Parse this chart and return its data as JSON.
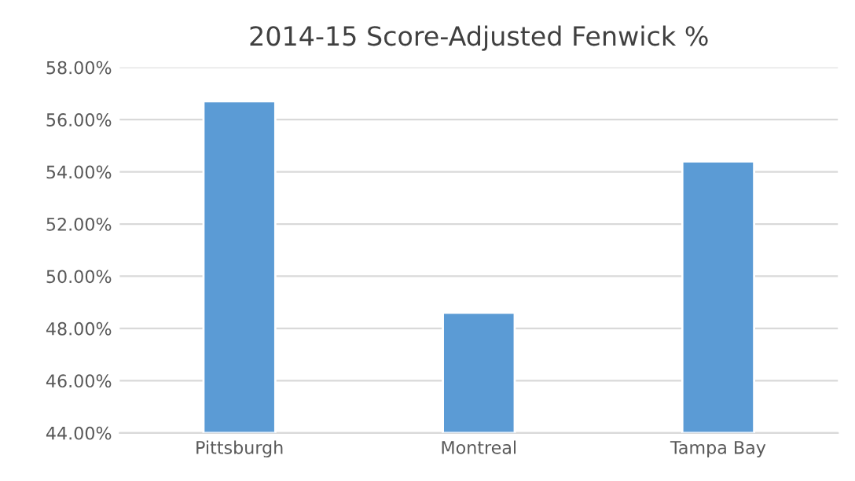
{
  "chart_data": {
    "type": "bar",
    "title": "2014-15 Score-Adjusted Fenwick %",
    "categories": [
      "Pittsburgh",
      "Montreal",
      "Tampa Bay"
    ],
    "values": [
      56.7,
      48.6,
      54.4
    ],
    "color": "#5b9bd5",
    "ylim": [
      44,
      58
    ],
    "yticks": [
      {
        "value": 44,
        "label": "44.00%"
      },
      {
        "value": 46,
        "label": "46.00%"
      },
      {
        "value": 48,
        "label": "48.00%"
      },
      {
        "value": 50,
        "label": "50.00%"
      },
      {
        "value": 52,
        "label": "52.00%"
      },
      {
        "value": 54,
        "label": "54.00%"
      },
      {
        "value": 56,
        "label": "56.00%"
      },
      {
        "value": 58,
        "label": "58.00%"
      }
    ],
    "grid": "y",
    "legend": false
  }
}
